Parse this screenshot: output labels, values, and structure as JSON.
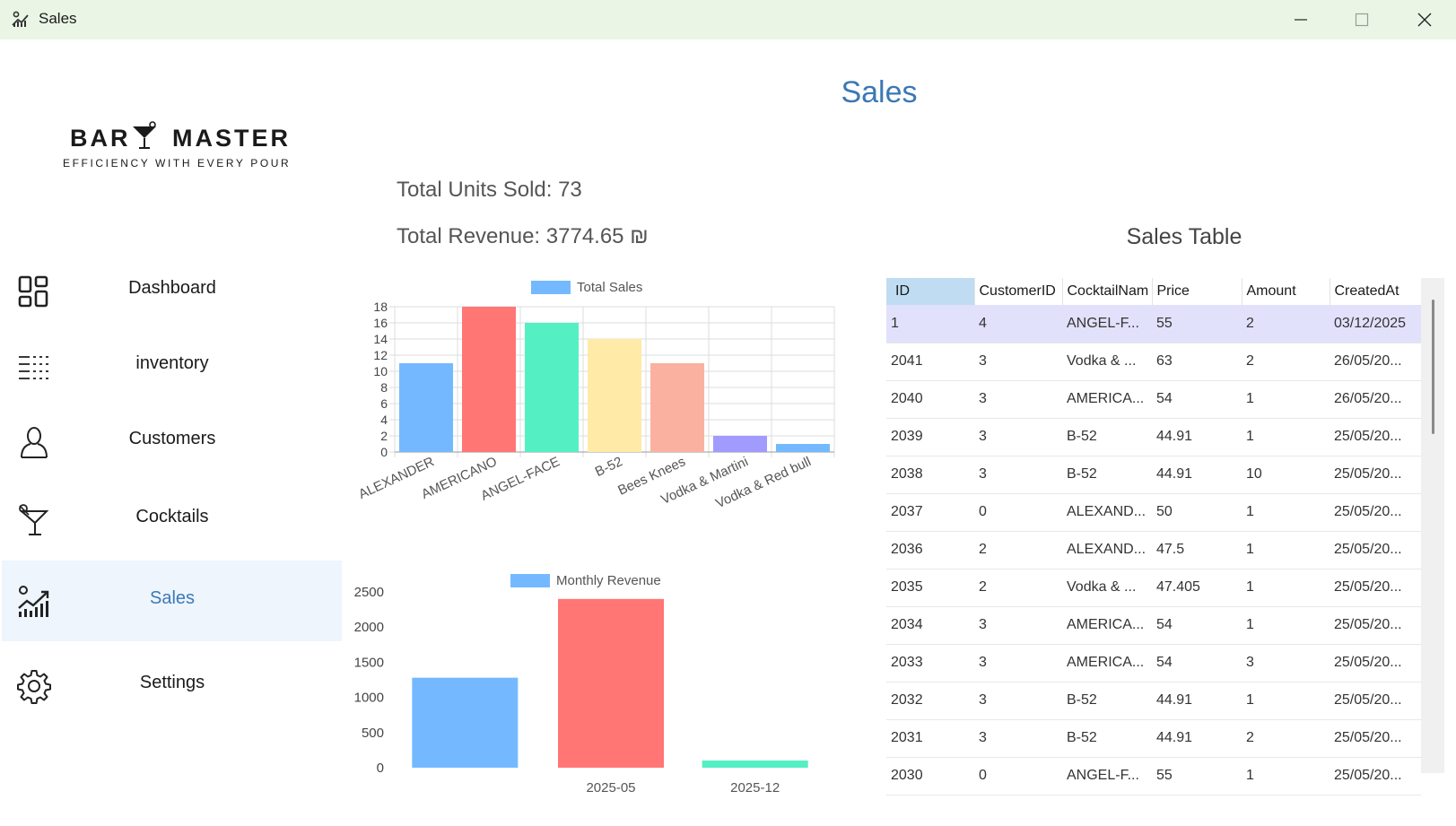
{
  "window": {
    "title": "Sales"
  },
  "sidebar": {
    "logo": {
      "brand_left": "BAR",
      "brand_right": "MASTER",
      "tagline": "EFFICIENCY WITH EVERY POUR"
    },
    "items": [
      {
        "label": "Dashboard",
        "icon": "dashboard-icon"
      },
      {
        "label": "inventory",
        "icon": "inventory-icon"
      },
      {
        "label": "Customers",
        "icon": "customers-icon"
      },
      {
        "label": "Cocktails",
        "icon": "cocktail-icon"
      },
      {
        "label": "Sales",
        "icon": "sales-icon",
        "active": true
      },
      {
        "label": "Settings",
        "icon": "gear-icon"
      }
    ]
  },
  "main": {
    "title": "Sales",
    "total_units": "Total Units Sold: 73",
    "total_revenue": "Total Revenue: 3774.65 ₪",
    "table_title": "Sales Table"
  },
  "chart_data": [
    {
      "type": "bar",
      "title": "",
      "legend": [
        "Total Sales"
      ],
      "legend_position": "top",
      "categories": [
        "ALEXANDER",
        "AMERICANO",
        "ANGEL-FACE",
        "B-52",
        "Bees Knees",
        "Vodka & Martini",
        "Vodka & Red bull"
      ],
      "series": [
        {
          "name": "Total Sales",
          "values": [
            11,
            18,
            16,
            14,
            11,
            2,
            1
          ]
        }
      ],
      "colors": [
        "#74b9ff",
        "#ff7675",
        "#55efc4",
        "#ffeaa7",
        "#fab1a0",
        "#a29bfe",
        "#74b9ff"
      ],
      "y_ticks": [
        0,
        2,
        4,
        6,
        8,
        10,
        12,
        14,
        16,
        18
      ],
      "ylim": [
        0,
        18
      ],
      "grid": true
    },
    {
      "type": "bar",
      "title": "",
      "legend": [
        "Monthly Revenue"
      ],
      "legend_position": "top",
      "categories": [
        "",
        "2025-05",
        "2025-12"
      ],
      "series": [
        {
          "name": "Monthly Revenue",
          "values": [
            1280,
            2400,
            100
          ]
        }
      ],
      "colors": [
        "#74b9ff",
        "#ff7675",
        "#55efc4"
      ],
      "y_ticks": [
        0,
        500,
        1000,
        1500,
        2000,
        2500
      ],
      "ylim": [
        0,
        2500
      ],
      "grid": false
    }
  ],
  "table": {
    "columns": [
      "ID",
      "CustomerID",
      "CocktailNam",
      "Price",
      "Amount",
      "CreatedAt"
    ],
    "rows": [
      [
        "1",
        "4",
        "ANGEL-F...",
        "55",
        "2",
        "03/12/2025"
      ],
      [
        "2041",
        "3",
        "Vodka & ...",
        "63",
        "2",
        "26/05/20..."
      ],
      [
        "2040",
        "3",
        "AMERICA...",
        "54",
        "1",
        "26/05/20..."
      ],
      [
        "2039",
        "3",
        "B-52",
        "44.91",
        "1",
        "25/05/20..."
      ],
      [
        "2038",
        "3",
        "B-52",
        "44.91",
        "10",
        "25/05/20..."
      ],
      [
        "2037",
        "0",
        "ALEXAND...",
        "50",
        "1",
        "25/05/20..."
      ],
      [
        "2036",
        "2",
        "ALEXAND...",
        "47.5",
        "1",
        "25/05/20..."
      ],
      [
        "2035",
        "2",
        "Vodka & ...",
        "47.405",
        "1",
        "25/05/20..."
      ],
      [
        "2034",
        "3",
        "AMERICA...",
        "54",
        "1",
        "25/05/20..."
      ],
      [
        "2033",
        "3",
        "AMERICA...",
        "54",
        "3",
        "25/05/20..."
      ],
      [
        "2032",
        "3",
        "B-52",
        "44.91",
        "1",
        "25/05/20..."
      ],
      [
        "2031",
        "3",
        "B-52",
        "44.91",
        "2",
        "25/05/20..."
      ],
      [
        "2030",
        "0",
        "ANGEL-F...",
        "55",
        "1",
        "25/05/20..."
      ]
    ]
  }
}
